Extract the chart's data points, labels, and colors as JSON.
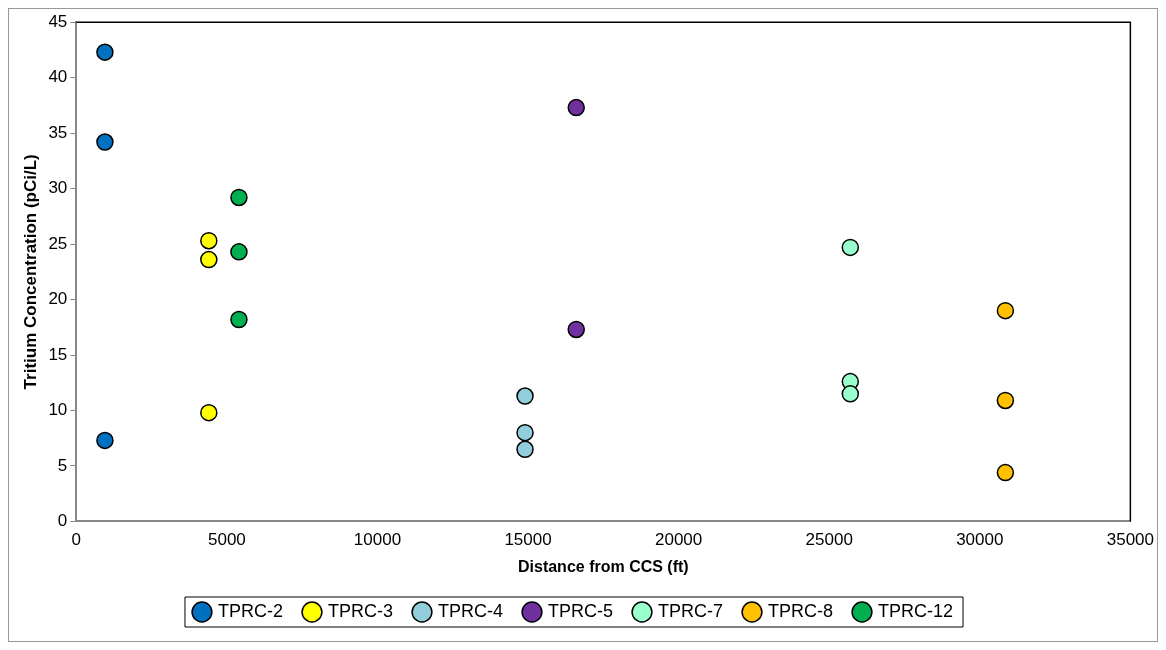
{
  "chart_data": {
    "type": "scatter",
    "xlabel": "Distance from CCS (ft)",
    "ylabel": "Tritium Concentration (pCi/L)",
    "xlim": [
      0,
      35000
    ],
    "xticks": [
      0,
      5000,
      10000,
      15000,
      20000,
      25000,
      30000,
      35000
    ],
    "ylim": [
      0,
      45
    ],
    "yticks": [
      0,
      5,
      10,
      15,
      20,
      25,
      30,
      35,
      40,
      45
    ],
    "grid": false,
    "legend": "bottom",
    "marker": "circle",
    "series": [
      {
        "name": "TPRC-2",
        "color": "#0070c0",
        "x": [
          950,
          950,
          950
        ],
        "values": [
          42.3,
          34.2,
          7.3
        ]
      },
      {
        "name": "TPRC-3",
        "color": "#ffff00",
        "x": [
          4400,
          4400,
          4400
        ],
        "values": [
          25.3,
          23.6,
          9.8
        ]
      },
      {
        "name": "TPRC-4",
        "color": "#92cddc",
        "x": [
          14900,
          14900,
          14900
        ],
        "values": [
          11.3,
          8.0,
          6.5
        ]
      },
      {
        "name": "TPRC-5",
        "color": "#7030a0",
        "x": [
          16600,
          16600
        ],
        "values": [
          37.3,
          17.3
        ]
      },
      {
        "name": "TPRC-7",
        "color": "#99ffcc",
        "x": [
          25700,
          25700,
          25700
        ],
        "values": [
          24.7,
          12.6,
          11.5
        ]
      },
      {
        "name": "TPRC-8",
        "color": "#ffc000",
        "x": [
          30850,
          30850,
          30850
        ],
        "values": [
          19.0,
          10.9,
          4.4
        ]
      },
      {
        "name": "TPRC-12",
        "color": "#00b050",
        "x": [
          5400,
          5400,
          5400
        ],
        "values": [
          29.2,
          24.3,
          18.2
        ]
      }
    ]
  }
}
